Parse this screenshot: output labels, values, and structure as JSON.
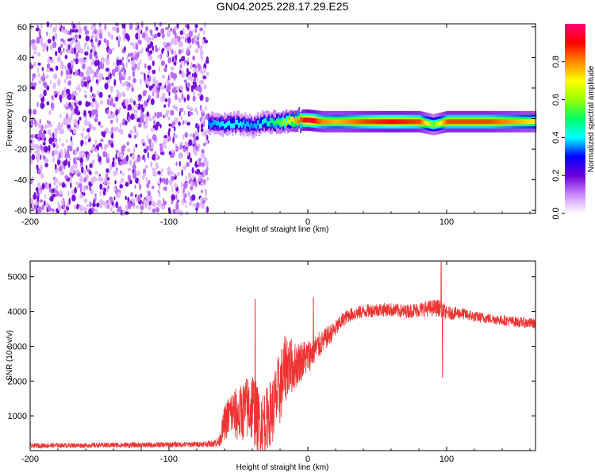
{
  "title": "GN04.2025.228.17.29.E25",
  "chart_data": [
    {
      "type": "heatmap",
      "xlabel": "Height of straight line (km)",
      "ylabel": "Frequency (Hz)",
      "xlim": [
        -200,
        164
      ],
      "ylim": [
        -62,
        62
      ],
      "xticks": [
        "-200",
        "-100",
        "0",
        "100"
      ],
      "xtick_values": [
        -200,
        -100,
        0,
        100
      ],
      "yticks": [
        "-60",
        "-40",
        "-20",
        "0",
        "20",
        "40",
        "60"
      ],
      "ytick_values": [
        -60,
        -40,
        -20,
        0,
        20,
        40,
        60
      ],
      "noise_region_x": [
        -200,
        -72
      ],
      "signal_track": {
        "x": [
          -72,
          -60,
          -50,
          -40,
          -30,
          -20,
          -10,
          0,
          10,
          20,
          40,
          60,
          80,
          90,
          100,
          130,
          164
        ],
        "center_hz": [
          -3,
          -4,
          -3,
          -5,
          -2,
          -3,
          -1,
          -1,
          -2,
          -2,
          -2,
          -2,
          -2,
          -4,
          -2,
          -2,
          -2
        ],
        "peak_amplitude": [
          0.35,
          0.4,
          0.4,
          0.35,
          0.45,
          0.55,
          0.75,
          0.95,
          0.8,
          0.75,
          0.85,
          0.9,
          0.85,
          0.55,
          0.85,
          0.85,
          0.7
        ]
      },
      "colorbar": {
        "label": "Normalized spectral amplitude",
        "ticks": [
          "0.0",
          "0.2",
          "0.4",
          "0.6",
          "0.8"
        ],
        "tick_values": [
          0.0,
          0.2,
          0.4,
          0.6,
          0.8
        ],
        "range": [
          0,
          1
        ],
        "colormap": [
          "#ffffff",
          "#cc88ff",
          "#6a00d6",
          "#0000ff",
          "#00ffff",
          "#00ff66",
          "#99ff00",
          "#ffff00",
          "#ff8800",
          "#ff0000",
          "#ff0077"
        ]
      }
    },
    {
      "type": "line",
      "xlabel": "Height of straight line (km)",
      "ylabel": "SNR (10 * v/v)",
      "xlim": [
        -200,
        164
      ],
      "ylim": [
        0,
        5450
      ],
      "xticks": [
        "-200",
        "-100",
        "0",
        "100"
      ],
      "xtick_values": [
        -200,
        -100,
        0,
        100
      ],
      "yticks": [
        "1000",
        "2000",
        "3000",
        "4000",
        "5000"
      ],
      "ytick_values": [
        1000,
        2000,
        3000,
        4000,
        5000
      ],
      "line_color": "#ee3333",
      "series": [
        {
          "x": [
            -200,
            -180,
            -160,
            -140,
            -120,
            -100,
            -80,
            -70,
            -64,
            -60,
            -55,
            -50,
            -45,
            -40,
            -35,
            -30,
            -25,
            -20,
            -15,
            -10,
            -5,
            0,
            5,
            10,
            15,
            20,
            25,
            30,
            40,
            50,
            60,
            70,
            80,
            90,
            95,
            100,
            110,
            120,
            130,
            140,
            150,
            164
          ],
          "values": [
            140,
            150,
            150,
            160,
            160,
            170,
            180,
            200,
            250,
            800,
            1100,
            1000,
            1200,
            1300,
            800,
            900,
            1200,
            1800,
            2500,
            2400,
            2600,
            2700,
            2900,
            3100,
            3300,
            3500,
            3750,
            3900,
            4000,
            4050,
            4050,
            4000,
            4050,
            4100,
            4100,
            3950,
            3950,
            3850,
            3800,
            3750,
            3700,
            3650
          ],
          "amplitude": [
            70,
            70,
            70,
            80,
            80,
            80,
            80,
            90,
            150,
            500,
            700,
            800,
            900,
            1100,
            900,
            900,
            1000,
            1100,
            1000,
            700,
            600,
            500,
            450,
            350,
            300,
            250,
            220,
            200,
            200,
            200,
            200,
            200,
            220,
            250,
            250,
            200,
            170,
            160,
            150,
            150,
            150,
            150
          ]
        }
      ],
      "annotations": [
        {
          "x": -38,
          "value": 4350
        },
        {
          "x": 4,
          "value": 4400
        },
        {
          "x": 96,
          "value": 5420
        },
        {
          "x": 97,
          "value": 2100
        }
      ]
    }
  ]
}
